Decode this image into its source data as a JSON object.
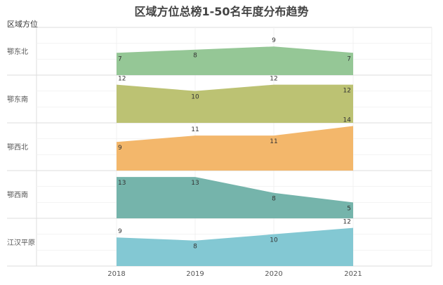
{
  "chart_data": {
    "type": "area",
    "title": "区域方位总榜1-50名年度分布趋势",
    "row_header": "区域方位",
    "x": [
      "2018",
      "2019",
      "2020",
      "2021"
    ],
    "ylim": [
      0,
      15
    ],
    "series": [
      {
        "name": "鄂东北",
        "values": [
          7,
          8,
          9,
          7
        ],
        "color": "#8fc490"
      },
      {
        "name": "鄂东南",
        "values": [
          12,
          10,
          12,
          12
        ],
        "color": "#b8bf6c"
      },
      {
        "name": "鄂西北",
        "values": [
          9,
          11,
          11,
          14
        ],
        "color": "#f2b363"
      },
      {
        "name": "鄂西南",
        "values": [
          13,
          13,
          8,
          5
        ],
        "color": "#6eb0a6"
      },
      {
        "name": "江汉平原",
        "values": [
          9,
          8,
          10,
          12
        ],
        "color": "#7cc5d1"
      }
    ]
  }
}
